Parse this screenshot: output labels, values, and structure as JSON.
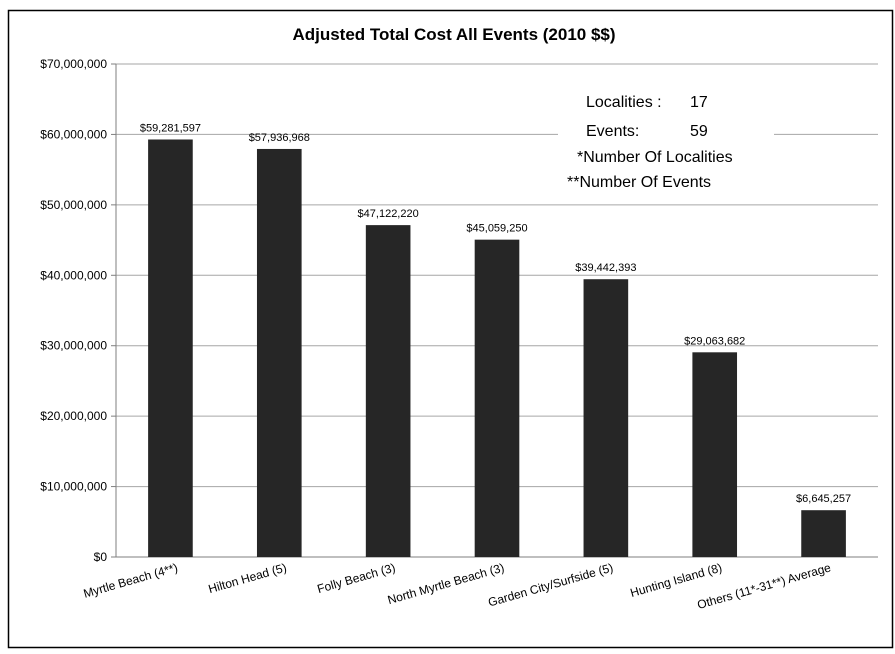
{
  "chart_data": {
    "type": "bar",
    "title": "Adjusted Total Cost All Events (2010 $$)",
    "xlabel": "",
    "ylabel": "",
    "ylim": [
      0,
      70000000
    ],
    "y_ticks": [
      0,
      10000000,
      20000000,
      30000000,
      40000000,
      50000000,
      60000000,
      70000000
    ],
    "y_tick_labels": [
      "$0",
      "$10,000,000",
      "$20,000,000",
      "$30,000,000",
      "$40,000,000",
      "$50,000,000",
      "$60,000,000",
      "$70,000,000"
    ],
    "grid": true,
    "bar_color": "#262626",
    "categories": [
      "Myrtle Beach (4**)",
      "Hilton Head (5)",
      "Folly Beach (3)",
      "North Myrtle Beach (3)",
      "Garden City/Surfside (5)",
      "Hunting Island (8)",
      "Others (11*-31**) Average"
    ],
    "values": [
      59281597,
      57936968,
      47122220,
      45059250,
      39442393,
      29063682,
      6645257
    ],
    "value_labels": [
      "$59,281,597",
      "$57,936,968",
      "$47,122,220",
      "$45,059,250",
      "$39,442,393",
      "$29,063,682",
      "$6,645,257"
    ],
    "annotations": {
      "localities_label": "Localities :",
      "localities_value": "17",
      "events_label": "Events:",
      "events_value": "59",
      "note_localities": "*Number Of Localities",
      "note_events": "**Number Of Events"
    }
  }
}
